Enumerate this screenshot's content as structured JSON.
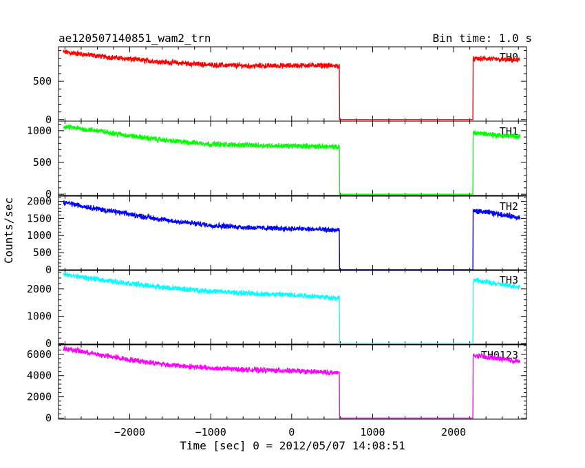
{
  "chart_data": {
    "type": "line",
    "title": "ae120507140851_wam2_trn",
    "bin_time_label": "Bin time: 1.0 s",
    "xlabel": "Time [sec] 0 = 2012/05/07 14:08:51",
    "ylabel": "Counts/sec",
    "xlim": [
      -2880,
      2900
    ],
    "x_ticks": [
      -2000,
      -1000,
      0,
      1000,
      2000
    ],
    "x_tick_labels": [
      "−2000",
      "−1000",
      "0",
      "1000",
      "2000"
    ],
    "grid": false,
    "gap": [
      590,
      2240
    ],
    "panels": [
      {
        "name": "TH0",
        "color": "#ff0000",
        "ylim": [
          -20,
          950
        ],
        "yticks": [
          0,
          500
        ],
        "ytick_labels": [
          "0",
          "500"
        ],
        "x": [
          -2800,
          -2400,
          -2000,
          -1500,
          -1000,
          -500,
          0,
          300,
          590,
          2240,
          2400,
          2600,
          2800
        ],
        "y": [
          880,
          830,
          790,
          745,
          715,
          700,
          705,
          710,
          700,
          790,
          795,
          780,
          775
        ]
      },
      {
        "name": "TH1",
        "color": "#00ff00",
        "ylim": [
          -20,
          1150
        ],
        "yticks": [
          0,
          500,
          1000
        ],
        "ytick_labels": [
          "0",
          "500",
          "1000"
        ],
        "x": [
          -2800,
          -2400,
          -2000,
          -1500,
          -1000,
          -500,
          0,
          300,
          590,
          2240,
          2400,
          2600,
          2800
        ],
        "y": [
          1060,
          1000,
          920,
          840,
          790,
          770,
          760,
          755,
          740,
          970,
          950,
          920,
          910
        ]
      },
      {
        "name": "TH2",
        "color": "#0000ff",
        "ylim": [
          -20,
          2150
        ],
        "yticks": [
          0,
          500,
          1000,
          1500,
          2000
        ],
        "ytick_labels": [
          "0",
          "500",
          "1000",
          "1500",
          "2000"
        ],
        "x": [
          -2800,
          -2400,
          -2000,
          -1500,
          -1000,
          -500,
          0,
          300,
          590,
          2240,
          2400,
          2600,
          2800
        ],
        "y": [
          1960,
          1780,
          1620,
          1430,
          1300,
          1230,
          1200,
          1180,
          1150,
          1720,
          1680,
          1610,
          1530
        ]
      },
      {
        "name": "TH3",
        "color": "#00ffff",
        "ylim": [
          -20,
          2700
        ],
        "yticks": [
          0,
          1000,
          2000
        ],
        "ytick_labels": [
          "0",
          "1000",
          "2000"
        ],
        "x": [
          -2800,
          -2400,
          -2000,
          -1500,
          -1000,
          -500,
          0,
          300,
          590,
          2240,
          2400,
          2600,
          2800
        ],
        "y": [
          2520,
          2350,
          2200,
          2030,
          1920,
          1830,
          1780,
          1730,
          1660,
          2330,
          2250,
          2150,
          2080
        ]
      },
      {
        "name": "TH0123",
        "color": "#ff00ff",
        "ylim": [
          -100,
          6900
        ],
        "yticks": [
          0,
          2000,
          4000,
          6000
        ],
        "ytick_labels": [
          "0",
          "2000",
          "4000",
          "6000"
        ],
        "x": [
          -2800,
          -2400,
          -2000,
          -1500,
          -1000,
          -500,
          0,
          300,
          590,
          2240,
          2400,
          2600,
          2800
        ],
        "y": [
          6550,
          6000,
          5500,
          5000,
          4700,
          4550,
          4450,
          4350,
          4250,
          5900,
          5750,
          5550,
          5350
        ]
      }
    ]
  }
}
